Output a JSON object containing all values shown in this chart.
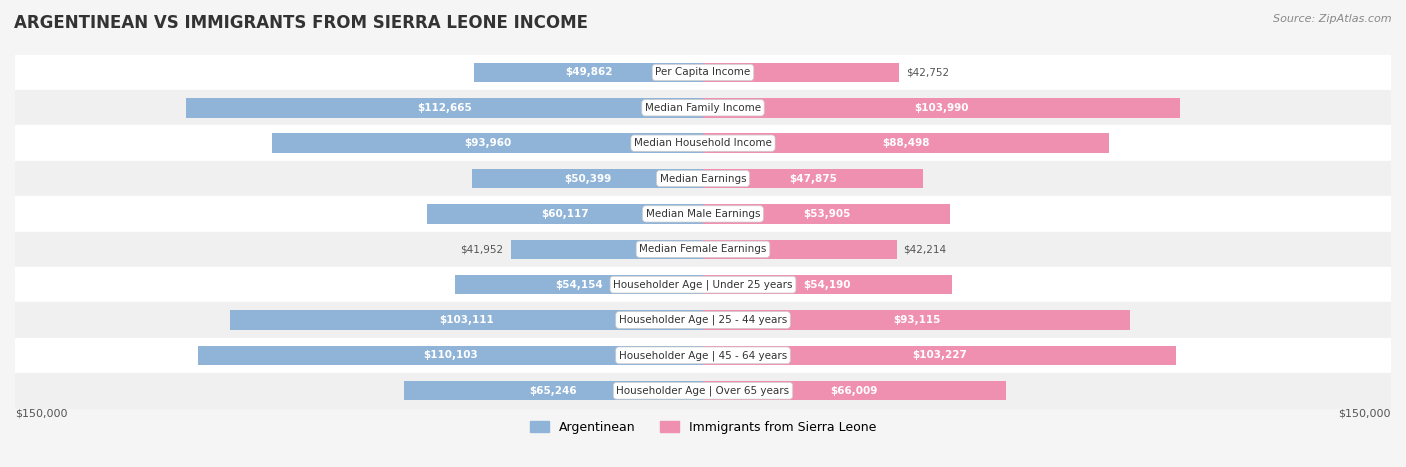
{
  "title": "ARGENTINEAN VS IMMIGRANTS FROM SIERRA LEONE INCOME",
  "source": "Source: ZipAtlas.com",
  "categories": [
    "Per Capita Income",
    "Median Family Income",
    "Median Household Income",
    "Median Earnings",
    "Median Male Earnings",
    "Median Female Earnings",
    "Householder Age | Under 25 years",
    "Householder Age | 25 - 44 years",
    "Householder Age | 45 - 64 years",
    "Householder Age | Over 65 years"
  ],
  "argentinean_values": [
    49862,
    112665,
    93960,
    50399,
    60117,
    41952,
    54154,
    103111,
    110103,
    65246
  ],
  "sierra_leone_values": [
    42752,
    103990,
    88498,
    47875,
    53905,
    42214,
    54190,
    93115,
    103227,
    66009
  ],
  "argentinean_labels": [
    "$49,862",
    "$112,665",
    "$93,960",
    "$50,399",
    "$60,117",
    "$41,952",
    "$54,154",
    "$103,111",
    "$110,103",
    "$65,246"
  ],
  "sierra_leone_labels": [
    "$42,752",
    "$103,990",
    "$88,498",
    "$47,875",
    "$53,905",
    "$42,214",
    "$54,190",
    "$93,115",
    "$103,227",
    "$66,009"
  ],
  "max_value": 150000,
  "bar_color_argentinean": "#90b4d8",
  "bar_color_sierra_leone": "#f090b0",
  "label_color_argentinean_large": "#ffffff",
  "label_color_argentinean_small": "#555555",
  "label_color_sierra_leone_large": "#ffffff",
  "label_color_sierra_leone_small": "#555555",
  "background_color": "#f5f5f5",
  "row_background_color": "#ffffff",
  "row_alt_background_color": "#f0f0f0",
  "legend_label_argentinean": "Argentinean",
  "legend_label_sierra_leone": "Immigrants from Sierra Leone",
  "xlabel_left": "$150,000",
  "xlabel_right": "$150,000",
  "threshold_for_white_label": 15000
}
